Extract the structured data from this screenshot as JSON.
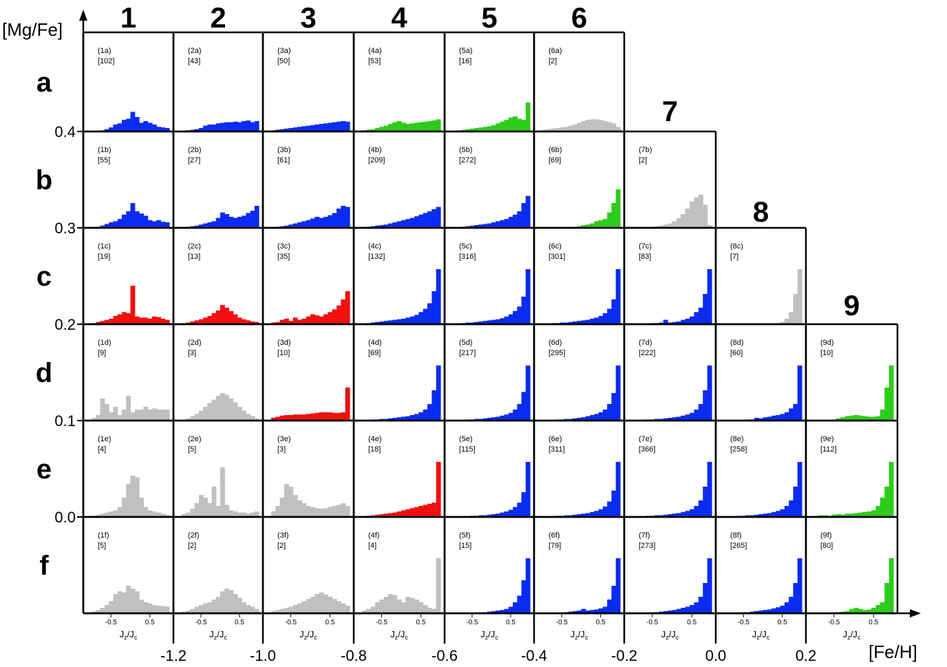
{
  "chart_data": {
    "type": "bar",
    "xlabel": "[Fe/H]",
    "ylabel": "[Mg/Fe]",
    "panel_xlabel": "Jz/Jc",
    "panel_xticks": [
      "-0.5",
      "0.5"
    ],
    "column_labels": [
      "1",
      "2",
      "3",
      "4",
      "5",
      "6",
      "7",
      "8",
      "9"
    ],
    "row_labels": [
      "a",
      "b",
      "c",
      "d",
      "e",
      "f"
    ],
    "fe_h_ticks": [
      "-1.2",
      "-1.0",
      "-0.8",
      "-0.6",
      "-0.4",
      "-0.2",
      "0.0",
      "0.2"
    ],
    "mg_fe_ticks": [
      "0.4",
      "0.3",
      "0.2",
      "0.1",
      "0.0"
    ],
    "colors": {
      "blue": "#0a2cf0",
      "green": "#2ecc1a",
      "red": "#f01010",
      "gray": "#c0c0c0"
    },
    "panels": [
      {
        "id": "1a",
        "count": "[102]",
        "color": "blue",
        "values": [
          1,
          1,
          2,
          4,
          7,
          12,
          14,
          20,
          22,
          34,
          25,
          15,
          18,
          15,
          12,
          8,
          7,
          6
        ]
      },
      {
        "id": "2a",
        "count": "[43]",
        "color": "blue",
        "values": [
          1,
          2,
          3,
          4,
          6,
          10,
          12,
          12,
          14,
          15,
          16,
          16,
          17,
          16,
          18,
          19,
          16,
          18
        ]
      },
      {
        "id": "3a",
        "count": "[50]",
        "color": "blue",
        "values": [
          2,
          3,
          4,
          5,
          6,
          7,
          8,
          9,
          10,
          11,
          12,
          13,
          14,
          15,
          16,
          17,
          18,
          17
        ]
      },
      {
        "id": "4a",
        "count": "[53]",
        "color": "green",
        "values": [
          2,
          3,
          4,
          6,
          8,
          10,
          13,
          16,
          18,
          15,
          13,
          14,
          15,
          16,
          17,
          18,
          19,
          21
        ]
      },
      {
        "id": "5a",
        "count": "[16]",
        "color": "green",
        "values": [
          1,
          2,
          3,
          4,
          5,
          6,
          7,
          8,
          9,
          11,
          14,
          17,
          20,
          24,
          26,
          22,
          20,
          50
        ]
      },
      {
        "id": "6a",
        "count": "[2]",
        "color": "gray",
        "values": [
          3,
          4,
          5,
          6,
          7,
          8,
          10,
          12,
          15,
          18,
          20,
          21,
          21,
          20,
          18,
          16,
          14,
          8
        ]
      },
      {
        "id": "1b",
        "count": "[55]",
        "color": "blue",
        "values": [
          1,
          2,
          4,
          7,
          10,
          12,
          16,
          24,
          30,
          45,
          30,
          26,
          22,
          14,
          12,
          14,
          11,
          10
        ]
      },
      {
        "id": "2b",
        "count": "[27]",
        "color": "blue",
        "values": [
          1,
          2,
          3,
          4,
          6,
          8,
          10,
          12,
          18,
          28,
          25,
          20,
          18,
          20,
          22,
          27,
          31,
          40
        ]
      },
      {
        "id": "3b",
        "count": "[61]",
        "color": "blue",
        "values": [
          1,
          2,
          3,
          4,
          6,
          8,
          10,
          12,
          14,
          17,
          20,
          18,
          20,
          23,
          27,
          35,
          40,
          38
        ]
      },
      {
        "id": "4b",
        "count": "[209]",
        "color": "blue",
        "values": [
          1,
          2,
          3,
          4,
          5,
          6,
          8,
          10,
          12,
          14,
          16,
          18,
          21,
          24,
          27,
          30,
          34,
          38
        ]
      },
      {
        "id": "5b",
        "count": "[272]",
        "color": "blue",
        "values": [
          1,
          1,
          2,
          3,
          4,
          5,
          6,
          7,
          8,
          10,
          12,
          14,
          16,
          20,
          24,
          30,
          45,
          58
        ]
      },
      {
        "id": "6b",
        "count": "[69]",
        "color": "green",
        "values": [
          0,
          0,
          0,
          0,
          0,
          1,
          1,
          2,
          3,
          5,
          6,
          8,
          12,
          14,
          16,
          28,
          45,
          70
        ]
      },
      {
        "id": "7b",
        "count": "[2]",
        "color": "gray",
        "values": [
          0,
          0,
          1,
          1,
          2,
          3,
          4,
          6,
          8,
          12,
          18,
          25,
          35,
          48,
          55,
          60,
          42,
          5
        ]
      },
      {
        "id": "1c",
        "count": "[19]",
        "color": "red",
        "values": [
          2,
          4,
          6,
          8,
          10,
          15,
          18,
          22,
          20,
          70,
          14,
          12,
          12,
          10,
          14,
          13,
          10,
          8
        ]
      },
      {
        "id": "2c",
        "count": "[13]",
        "color": "red",
        "values": [
          2,
          3,
          5,
          7,
          9,
          12,
          15,
          20,
          25,
          35,
          30,
          24,
          18,
          12,
          9,
          7,
          5,
          4
        ]
      },
      {
        "id": "3c",
        "count": "[35]",
        "color": "red",
        "values": [
          3,
          4,
          8,
          10,
          6,
          12,
          8,
          10,
          14,
          18,
          16,
          14,
          18,
          22,
          27,
          34,
          45,
          60
        ]
      },
      {
        "id": "4c",
        "count": "[132]",
        "color": "blue",
        "values": [
          1,
          2,
          3,
          4,
          5,
          6,
          7,
          8,
          9,
          10,
          12,
          14,
          17,
          22,
          28,
          38,
          60,
          100
        ]
      },
      {
        "id": "5c",
        "count": "[316]",
        "color": "blue",
        "values": [
          1,
          1,
          2,
          3,
          3,
          4,
          5,
          6,
          7,
          8,
          9,
          11,
          14,
          18,
          24,
          32,
          50,
          100
        ]
      },
      {
        "id": "6c",
        "count": "[301]",
        "color": "blue",
        "values": [
          1,
          1,
          2,
          2,
          3,
          3,
          4,
          5,
          6,
          7,
          8,
          10,
          12,
          15,
          20,
          28,
          45,
          100
        ]
      },
      {
        "id": "7c",
        "count": "[83]",
        "color": "blue",
        "values": [
          0,
          1,
          1,
          1,
          2,
          2,
          3,
          8,
          3,
          4,
          5,
          8,
          10,
          14,
          22,
          30,
          55,
          100
        ]
      },
      {
        "id": "8c",
        "count": "[7]",
        "color": "gray",
        "values": [
          0,
          0,
          0,
          0,
          0,
          0,
          0,
          0,
          0,
          0,
          0,
          1,
          2,
          4,
          10,
          22,
          55,
          100
        ]
      },
      {
        "id": "1d",
        "count": "[9]",
        "color": "gray",
        "values": [
          5,
          10,
          40,
          30,
          15,
          25,
          10,
          20,
          45,
          15,
          20,
          20,
          25,
          20,
          22,
          20,
          20,
          20
        ]
      },
      {
        "id": "2d",
        "count": "[3]",
        "color": "gray",
        "values": [
          2,
          4,
          8,
          12,
          18,
          25,
          32,
          38,
          45,
          50,
          47,
          40,
          33,
          25,
          18,
          12,
          8,
          4
        ]
      },
      {
        "id": "3d",
        "count": "[10]",
        "color": "red",
        "values": [
          5,
          7,
          9,
          10,
          10,
          11,
          11,
          11,
          12,
          13,
          14,
          15,
          15,
          15,
          14,
          14,
          15,
          60
        ]
      },
      {
        "id": "4d",
        "count": "[69]",
        "color": "blue",
        "values": [
          1,
          1,
          2,
          2,
          3,
          3,
          4,
          5,
          6,
          7,
          8,
          10,
          12,
          15,
          20,
          30,
          55,
          100
        ]
      },
      {
        "id": "5d",
        "count": "[217]",
        "color": "blue",
        "values": [
          1,
          1,
          1,
          2,
          2,
          3,
          3,
          4,
          5,
          6,
          7,
          9,
          11,
          14,
          20,
          30,
          52,
          100
        ]
      },
      {
        "id": "6d",
        "count": "[295]",
        "color": "blue",
        "values": [
          1,
          1,
          1,
          2,
          2,
          3,
          3,
          4,
          5,
          6,
          8,
          10,
          12,
          15,
          20,
          30,
          50,
          100
        ]
      },
      {
        "id": "7d",
        "count": "[222]",
        "color": "blue",
        "values": [
          1,
          1,
          1,
          2,
          2,
          3,
          3,
          4,
          5,
          6,
          7,
          9,
          11,
          14,
          20,
          30,
          55,
          100
        ]
      },
      {
        "id": "8d",
        "count": "[60]",
        "color": "blue",
        "values": [
          0,
          0,
          1,
          1,
          1,
          2,
          2,
          5,
          4,
          6,
          7,
          9,
          10,
          12,
          15,
          22,
          30,
          100
        ]
      },
      {
        "id": "9d",
        "count": "[10]",
        "color": "green",
        "values": [
          0,
          0,
          0,
          1,
          2,
          4,
          6,
          8,
          9,
          10,
          9,
          8,
          7,
          7,
          8,
          20,
          60,
          100
        ]
      },
      {
        "id": "1e",
        "count": "[4]",
        "color": "gray",
        "values": [
          2,
          4,
          6,
          8,
          10,
          12,
          18,
          35,
          60,
          75,
          72,
          35,
          18,
          12,
          10,
          8,
          6,
          4
        ]
      },
      {
        "id": "2e",
        "count": "[5]",
        "color": "gray",
        "values": [
          5,
          8,
          15,
          25,
          40,
          35,
          25,
          55,
          20,
          90,
          22,
          12,
          10,
          8,
          8,
          6,
          8,
          10
        ]
      },
      {
        "id": "3e",
        "count": "[3]",
        "color": "gray",
        "values": [
          10,
          20,
          35,
          60,
          55,
          40,
          30,
          25,
          20,
          18,
          16,
          15,
          16,
          18,
          20,
          22,
          25,
          20
        ]
      },
      {
        "id": "4e",
        "count": "[18]",
        "color": "red",
        "values": [
          1,
          2,
          3,
          4,
          5,
          6,
          7,
          8,
          10,
          12,
          14,
          16,
          18,
          20,
          22,
          24,
          26,
          100
        ]
      },
      {
        "id": "5e",
        "count": "[115]",
        "color": "blue",
        "values": [
          0,
          1,
          1,
          1,
          2,
          2,
          3,
          3,
          4,
          5,
          6,
          8,
          10,
          13,
          18,
          26,
          45,
          100
        ]
      },
      {
        "id": "6e",
        "count": "[311]",
        "color": "blue",
        "values": [
          1,
          1,
          1,
          2,
          2,
          3,
          3,
          4,
          5,
          6,
          7,
          9,
          11,
          14,
          19,
          28,
          48,
          100
        ]
      },
      {
        "id": "7e",
        "count": "[366]",
        "color": "blue",
        "values": [
          1,
          1,
          1,
          2,
          2,
          3,
          3,
          4,
          5,
          6,
          7,
          9,
          11,
          14,
          20,
          30,
          55,
          100
        ]
      },
      {
        "id": "8e",
        "count": "[258]",
        "color": "blue",
        "values": [
          1,
          1,
          1,
          2,
          2,
          3,
          3,
          4,
          5,
          6,
          7,
          9,
          11,
          14,
          20,
          30,
          55,
          100
        ]
      },
      {
        "id": "9e",
        "count": "[112]",
        "color": "green",
        "values": [
          2,
          3,
          3,
          2,
          4,
          5,
          4,
          6,
          6,
          7,
          8,
          9,
          10,
          12,
          20,
          35,
          55,
          100
        ]
      },
      {
        "id": "1f",
        "count": "[5]",
        "color": "gray",
        "values": [
          3,
          6,
          10,
          15,
          22,
          35,
          40,
          38,
          50,
          45,
          40,
          25,
          20,
          18,
          15,
          14,
          13,
          12
        ]
      },
      {
        "id": "2f",
        "count": "[2]",
        "color": "gray",
        "values": [
          3,
          5,
          8,
          12,
          15,
          18,
          20,
          25,
          30,
          40,
          45,
          42,
          35,
          28,
          20,
          15,
          12,
          8
        ]
      },
      {
        "id": "3f",
        "count": "[2]",
        "color": "gray",
        "values": [
          4,
          6,
          8,
          10,
          12,
          15,
          18,
          22,
          26,
          30,
          35,
          38,
          34,
          30,
          26,
          22,
          18,
          14
        ]
      },
      {
        "id": "4f",
        "count": "[4]",
        "color": "gray",
        "values": [
          5,
          8,
          12,
          20,
          25,
          30,
          35,
          33,
          25,
          20,
          30,
          28,
          25,
          20,
          15,
          10,
          8,
          100
        ]
      },
      {
        "id": "5f",
        "count": "[15]",
        "color": "blue",
        "values": [
          0,
          0,
          0,
          0,
          1,
          1,
          1,
          2,
          3,
          4,
          5,
          6,
          8,
          12,
          20,
          32,
          60,
          100
        ]
      },
      {
        "id": "6f",
        "count": "[79]",
        "color": "blue",
        "values": [
          0,
          0,
          0,
          1,
          1,
          2,
          3,
          4,
          5,
          8,
          5,
          6,
          7,
          9,
          12,
          25,
          50,
          100
        ]
      },
      {
        "id": "7f",
        "count": "[273]",
        "color": "blue",
        "values": [
          0,
          0,
          1,
          1,
          2,
          2,
          3,
          4,
          5,
          6,
          8,
          10,
          12,
          15,
          20,
          30,
          55,
          100
        ]
      },
      {
        "id": "8f",
        "count": "[265]",
        "color": "blue",
        "values": [
          0,
          0,
          1,
          1,
          2,
          2,
          3,
          4,
          5,
          6,
          7,
          9,
          11,
          14,
          20,
          30,
          55,
          100
        ]
      },
      {
        "id": "9f",
        "count": "[80]",
        "color": "green",
        "values": [
          0,
          1,
          1,
          0,
          2,
          2,
          3,
          4,
          8,
          10,
          8,
          6,
          7,
          10,
          15,
          20,
          55,
          100
        ]
      }
    ]
  }
}
